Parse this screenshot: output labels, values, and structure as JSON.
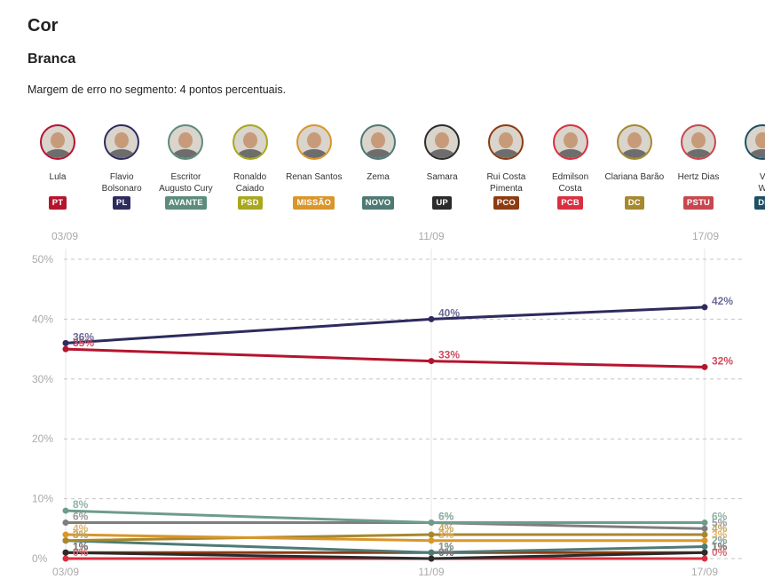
{
  "header": {
    "title": "Cor",
    "subtitle": "Branca",
    "note": "Margem de erro no segmento: 4 pontos percentuais."
  },
  "candidates": [
    {
      "name": "Lula",
      "party": "PT",
      "color": "#b5142e"
    },
    {
      "name": "Flavio\nBolsonaro",
      "party": "PL",
      "color": "#2e2b5e"
    },
    {
      "name": "Escritor\nAugusto Cury",
      "party": "AVANTE",
      "color": "#5c8c7c"
    },
    {
      "name": "Ronaldo\nCaiado",
      "party": "PSD",
      "color": "#a8a81e"
    },
    {
      "name": "Renan Santos",
      "party": "MISSÃO",
      "color": "#d9962b"
    },
    {
      "name": "Zema",
      "party": "NOVO",
      "color": "#4e7a75"
    },
    {
      "name": "Samara",
      "party": "UP",
      "color": "#2b2b2b"
    },
    {
      "name": "Rui Costa\nPimenta",
      "party": "PCO",
      "color": "#8c3b12"
    },
    {
      "name": "Edmilson\nCosta",
      "party": "PCB",
      "color": "#d9303f"
    },
    {
      "name": "Clariana Barão",
      "party": "DC",
      "color": "#a6882e"
    },
    {
      "name": "Hertz Dias",
      "party": "PSTU",
      "color": "#c8474f"
    },
    {
      "name": "V\nW",
      "party": "DI",
      "color": "#1e4f63"
    }
  ],
  "chart_data": {
    "type": "line",
    "x": [
      "03/09",
      "11/09",
      "17/09"
    ],
    "yticks": [
      "50%",
      "40%",
      "30%",
      "20%",
      "10%",
      "0%"
    ],
    "ylim": [
      0,
      50
    ],
    "grid": true,
    "series": [
      {
        "name": "Flavio Bolsonaro",
        "color": "#2e2b5e",
        "values": [
          36,
          40,
          42
        ],
        "labels": [
          "36%",
          "40%",
          "42%"
        ],
        "labelColor": "#6b6a98"
      },
      {
        "name": "Lula",
        "color": "#b5142e",
        "values": [
          35,
          33,
          32
        ],
        "labels": [
          "35%",
          "33%",
          "32%"
        ],
        "labelColor": "#d2485c"
      },
      {
        "name": "Escritor Augusto Cury",
        "color": "#6e9c8c",
        "values": [
          8,
          6,
          6
        ],
        "labels": [
          "8%",
          "6%",
          "6%"
        ],
        "labelColor": "#8fb3a6"
      },
      {
        "name": "Ronaldo Caiado",
        "color": "#7e7e7e",
        "values": [
          6,
          6,
          5
        ],
        "labels": [
          "6%",
          "6%",
          "5%"
        ],
        "labelColor": "#9a9a9a"
      },
      {
        "name": "Renan Santos",
        "color": "#d9962b",
        "values": [
          4,
          3,
          3
        ],
        "labels": [
          "4%",
          "3%",
          "3%"
        ],
        "labelColor": "#e3b26a"
      },
      {
        "name": "Clariana Barão",
        "color": "#a6882e",
        "values": [
          3,
          4,
          4
        ],
        "labels": [
          "3%",
          "4%",
          "4%"
        ],
        "labelColor": "#c2a861"
      },
      {
        "name": "Zema",
        "color": "#4e7a75",
        "values": [
          3,
          1,
          2
        ],
        "labels": [
          "3%",
          "1%",
          "2%"
        ],
        "labelColor": "#7d9e9a"
      },
      {
        "name": "Samara",
        "color": "#2b2b2b",
        "values": [
          1,
          0,
          1
        ],
        "labels": [
          "1%",
          "0%",
          "1%"
        ],
        "labelColor": "#777777"
      },
      {
        "name": "Rui Costa Pimenta",
        "color": "#8c3b12",
        "values": [
          1,
          1,
          1
        ],
        "labels": [
          "1%",
          "1%",
          "1%"
        ],
        "labelColor": "#b06a47"
      },
      {
        "name": "Edmilson Costa",
        "color": "#d9303f",
        "values": [
          0,
          0,
          0
        ],
        "labels": [
          "0%",
          "0%",
          "0%"
        ],
        "labelColor": "#e06a74"
      }
    ]
  }
}
